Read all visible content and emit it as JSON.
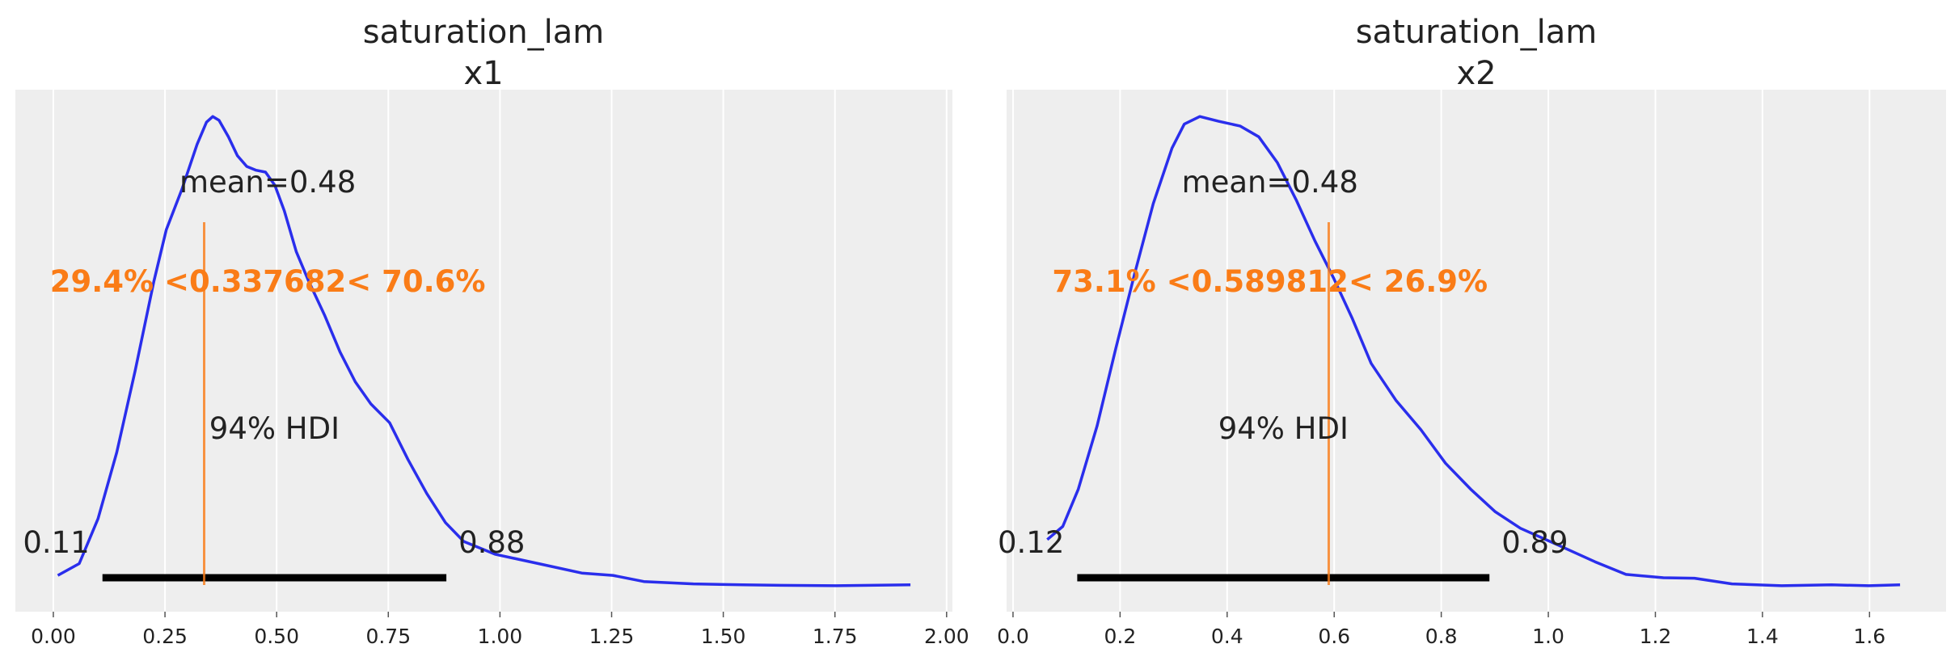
{
  "colors": {
    "background": "#eeeeee",
    "grid": "#ffffff",
    "kde": "#2a2eec",
    "reference": "#fa7c17",
    "hdi_bar": "#000000",
    "text": "#222222"
  },
  "chart_data": [
    {
      "type": "line",
      "title_line1": "saturation_lam",
      "title_line2": "x1",
      "xlim": [
        -0.085,
        2.013
      ],
      "ylim": [
        -0.051,
        1.057
      ],
      "grid": "vertical",
      "y_axis_visible": false,
      "xticks": [
        0,
        0.25,
        0.5,
        0.75,
        1.0,
        1.25,
        1.5,
        1.75,
        2.0
      ],
      "xtick_labels": [
        "0.00",
        "0.25",
        "0.50",
        "0.75",
        "1.00",
        "1.25",
        "1.50",
        "1.75",
        "2.00"
      ],
      "kde_relative_density": {
        "x": [
          0.01,
          0.058,
          0.1,
          0.142,
          0.183,
          0.225,
          0.253,
          0.288,
          0.322,
          0.343,
          0.357,
          0.371,
          0.392,
          0.412,
          0.433,
          0.454,
          0.475,
          0.496,
          0.517,
          0.544,
          0.572,
          0.607,
          0.642,
          0.676,
          0.711,
          0.753,
          0.794,
          0.836,
          0.878,
          0.919,
          0.989,
          1.086,
          1.183,
          1.253,
          1.322,
          1.433,
          1.544,
          1.628,
          1.753,
          1.919
        ],
        "y": [
          0.026,
          0.051,
          0.146,
          0.287,
          0.46,
          0.65,
          0.76,
          0.846,
          0.941,
          0.988,
          1.0,
          0.992,
          0.957,
          0.917,
          0.894,
          0.886,
          0.882,
          0.854,
          0.8,
          0.713,
          0.65,
          0.579,
          0.5,
          0.437,
          0.39,
          0.35,
          0.272,
          0.2,
          0.138,
          0.098,
          0.071,
          0.051,
          0.031,
          0.026,
          0.013,
          0.008,
          0.006,
          0.005,
          0.004,
          0.006
        ]
      },
      "mean": 0.48,
      "mean_label": "mean=0.48",
      "ref_value": 0.337682,
      "ref_label": "29.4% <0.337682< 70.6%",
      "hdi_label": "94% HDI",
      "hdi": [
        0.11,
        0.88
      ],
      "hdi_low_label": "0.11",
      "hdi_high_label": "0.88"
    },
    {
      "type": "line",
      "title_line1": "saturation_lam",
      "title_line2": "x2",
      "xlim": [
        -0.012,
        1.743
      ],
      "ylim": [
        -0.051,
        1.057
      ],
      "grid": "vertical",
      "y_axis_visible": false,
      "xticks": [
        0,
        0.2,
        0.4,
        0.6,
        0.8,
        1.0,
        1.2,
        1.4,
        1.6
      ],
      "xtick_labels": [
        "0.0",
        "0.2",
        "0.4",
        "0.6",
        "0.8",
        "1.0",
        "1.2",
        "1.4",
        "1.6"
      ],
      "kde_relative_density": {
        "x": [
          0.064,
          0.093,
          0.122,
          0.157,
          0.192,
          0.227,
          0.262,
          0.297,
          0.32,
          0.349,
          0.384,
          0.424,
          0.459,
          0.494,
          0.529,
          0.564,
          0.599,
          0.634,
          0.669,
          0.715,
          0.762,
          0.808,
          0.855,
          0.901,
          0.948,
          1.017,
          1.087,
          1.145,
          1.215,
          1.273,
          1.343,
          1.436,
          1.529,
          1.599,
          1.657
        ],
        "y": [
          0.102,
          0.13,
          0.209,
          0.343,
          0.508,
          0.665,
          0.815,
          0.933,
          0.984,
          1.0,
          0.99,
          0.98,
          0.957,
          0.902,
          0.823,
          0.736,
          0.657,
          0.571,
          0.476,
          0.398,
          0.335,
          0.264,
          0.209,
          0.161,
          0.126,
          0.091,
          0.055,
          0.028,
          0.021,
          0.02,
          0.008,
          0.004,
          0.006,
          0.004,
          0.006
        ]
      },
      "mean": 0.48,
      "mean_label": "mean=0.48",
      "ref_value": 0.589812,
      "ref_label": "73.1% <0.589812< 26.9%",
      "hdi_label": "94% HDI",
      "hdi": [
        0.12,
        0.89
      ],
      "hdi_low_label": "0.12",
      "hdi_high_label": "0.89"
    }
  ]
}
